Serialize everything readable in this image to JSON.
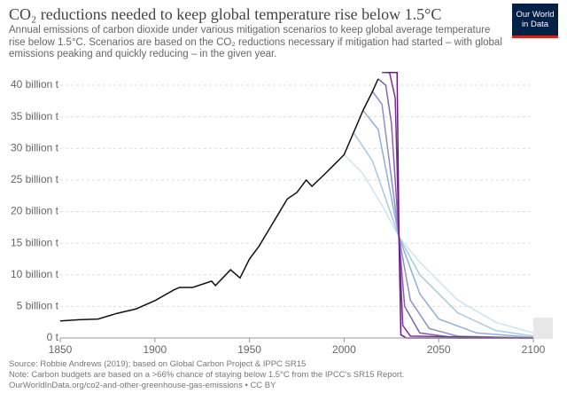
{
  "chart_data": {
    "type": "line",
    "title": "CO₂ reductions needed to keep global temperature rise below 1.5°C",
    "subtitle": "Annual emissions of carbon dioxide under various mitigation scenarios to keep global average temperature rise below 1.5°C. Scenarios are based on the CO₂ reductions necessary if mitigation had started – with global emissions peaking and quickly reducing – in the given year.",
    "logo": "Our World in Data",
    "source_notes": [
      "Source: Robbie Andrews (2019); based on Global Carbon Project & IPPC SR15",
      "Note: Carbon budgets are based on a >66% chance of staying below 1.5°C from the IPCC's SR15 Report.",
      "OurWorldInData.org/co2-and-other-greenhouse-gas-emissions • CC BY"
    ],
    "xlim": [
      1850,
      2100
    ],
    "xticks": [
      1850,
      1900,
      1950,
      2000,
      2050,
      2100
    ],
    "ylim": [
      0,
      42
    ],
    "yticks": [
      {
        "value": 0,
        "label": "0 t"
      },
      {
        "value": 5,
        "label": "5 billion t"
      },
      {
        "value": 10,
        "label": "10 billion t"
      },
      {
        "value": 15,
        "label": "15 billion t"
      },
      {
        "value": 20,
        "label": "20 billion t"
      },
      {
        "value": 25,
        "label": "25 billion t"
      },
      {
        "value": 30,
        "label": "30 billion t"
      },
      {
        "value": 35,
        "label": "35 billion t"
      },
      {
        "value": 40,
        "label": "40 billion t"
      }
    ],
    "grid": true,
    "series": [
      {
        "color": "#cfe3f0",
        "x": [
          2000,
          2010,
          2020,
          2029,
          2040,
          2060,
          2080,
          2100
        ],
        "values": [
          29,
          26,
          21,
          16,
          12,
          6,
          2.5,
          0.8
        ]
      },
      {
        "color": "#a9c8e4",
        "x": [
          2005,
          2015,
          2029,
          2040,
          2060,
          2080,
          2100
        ],
        "values": [
          32.5,
          28,
          16,
          10,
          4,
          1.2,
          0.3
        ]
      },
      {
        "color": "#8fb0d9",
        "x": [
          2010,
          2018,
          2029,
          2040,
          2050,
          2070,
          2100
        ],
        "values": [
          36,
          33,
          16,
          7,
          3,
          0.8,
          0.1
        ]
      },
      {
        "color": "#8e8ec8",
        "x": [
          2015,
          2020,
          2029,
          2035,
          2045,
          2060,
          2100
        ],
        "values": [
          39,
          37,
          16,
          6,
          1.5,
          0.3,
          0
        ]
      },
      {
        "color": "#8a5fb0",
        "x": [
          2018,
          2022,
          2025,
          2029,
          2032,
          2040,
          2060,
          2100
        ],
        "values": [
          41,
          40,
          34,
          16,
          5,
          0.8,
          0,
          0
        ]
      },
      {
        "color": "#7a2f98",
        "x": [
          2020,
          2024,
          2027,
          2029,
          2031,
          2035,
          2100
        ],
        "values": [
          42,
          42,
          38,
          16,
          2,
          0.3,
          0
        ]
      },
      {
        "color": "#6a1a86",
        "x": [
          2022,
          2026,
          2028,
          2029,
          2030,
          2033,
          2100
        ],
        "values": [
          42,
          42,
          42,
          16,
          0.5,
          0,
          0
        ]
      },
      {
        "color": "#111111",
        "x": [
          1850,
          1860,
          1870,
          1880,
          1890,
          1900,
          1910,
          1913,
          1920,
          1930,
          1932,
          1940,
          1945,
          1950,
          1955,
          1960,
          1965,
          1970,
          1975,
          1980,
          1983,
          1990,
          1995,
          2000,
          2005,
          2010,
          2015,
          2018
        ],
        "values": [
          2.7,
          2.9,
          3.0,
          3.9,
          4.6,
          5.9,
          7.6,
          8.0,
          8.0,
          9.0,
          8.3,
          10.8,
          9.5,
          12.5,
          14.5,
          17,
          19.5,
          22,
          23,
          25,
          24,
          26,
          27.5,
          29,
          32.5,
          36,
          39,
          41
        ]
      }
    ]
  }
}
